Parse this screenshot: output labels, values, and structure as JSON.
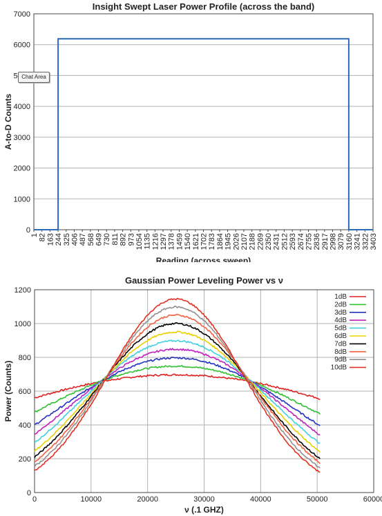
{
  "overlay": {
    "chat_area_label": "Chat Area"
  },
  "chart_data": [
    {
      "type": "line",
      "title": "Insight Swept Laser Power Profile (across the band)",
      "xlabel": "Reading (across sweep)",
      "ylabel": "A-to-D Counts",
      "ylim": [
        0,
        7000
      ],
      "yticks": [
        0,
        1000,
        2000,
        3000,
        4000,
        5000,
        6000,
        7000
      ],
      "xlim": [
        1,
        3403
      ],
      "categories": [
        "1",
        "82",
        "163",
        "244",
        "325",
        "406",
        "487",
        "568",
        "649",
        "730",
        "811",
        "892",
        "973",
        "1054",
        "1135",
        "1216",
        "1297",
        "1378",
        "1459",
        "1540",
        "1621",
        "1702",
        "1783",
        "1864",
        "1945",
        "2026",
        "2107",
        "2188",
        "2269",
        "2350",
        "2431",
        "2512",
        "2593",
        "2674",
        "2755",
        "2836",
        "2917",
        "2998",
        "3079",
        "3160",
        "3241",
        "3322",
        "3403"
      ],
      "grid": true,
      "series": [
        {
          "color": "#2a6ab8",
          "points": [
            [
              1,
              0
            ],
            [
              244,
              0
            ],
            [
              244,
              6190
            ],
            [
              3160,
              6190
            ],
            [
              3160,
              0
            ],
            [
              3403,
              0
            ]
          ]
        }
      ]
    },
    {
      "type": "line",
      "title": "Gaussian Power Leveling Power vs ν",
      "xlabel": "ν (.1 GHZ)",
      "ylabel": "Power (Counts)",
      "xlim": [
        0,
        60000
      ],
      "ylim": [
        0,
        1200
      ],
      "xticks": [
        0,
        10000,
        20000,
        30000,
        40000,
        50000,
        60000
      ],
      "yticks": [
        0,
        200,
        400,
        600,
        800,
        1000,
        1200
      ],
      "grid": true,
      "legend": "top-right",
      "series": [
        {
          "name": "1dB",
          "color": "#e02020",
          "x_range": [
            0,
            50500
          ],
          "center": 25000,
          "peak": 697,
          "left_end": 560,
          "right_end": 555
        },
        {
          "name": "2dB",
          "color": "#30c030",
          "x_range": [
            0,
            50500
          ],
          "center": 25000,
          "peak": 748,
          "left_end": 475,
          "right_end": 465
        },
        {
          "name": "3dB",
          "color": "#2030c0",
          "x_range": [
            0,
            50500
          ],
          "center": 25000,
          "peak": 797,
          "left_end": 400,
          "right_end": 395
        },
        {
          "name": "4dB",
          "color": "#c020c0",
          "x_range": [
            0,
            50500
          ],
          "center": 25000,
          "peak": 848,
          "left_end": 345,
          "right_end": 340
        },
        {
          "name": "5dB",
          "color": "#40d0e0",
          "x_range": [
            0,
            50500
          ],
          "center": 25000,
          "peak": 898,
          "left_end": 295,
          "right_end": 290
        },
        {
          "name": "6dB",
          "color": "#e8d000",
          "x_range": [
            0,
            50500
          ],
          "center": 25000,
          "peak": 950,
          "left_end": 245,
          "right_end": 240
        },
        {
          "name": "7dB",
          "color": "#000000",
          "x_range": [
            0,
            50500
          ],
          "center": 25000,
          "peak": 1000,
          "left_end": 210,
          "right_end": 200
        },
        {
          "name": "8dB",
          "color": "#f06040",
          "x_range": [
            0,
            50500
          ],
          "center": 25000,
          "peak": 1050,
          "left_end": 180,
          "right_end": 175
        },
        {
          "name": "9dB",
          "color": "#909090",
          "x_range": [
            0,
            50500
          ],
          "center": 25000,
          "peak": 1098,
          "left_end": 155,
          "right_end": 145
        },
        {
          "name": "10dB",
          "color": "#e03020",
          "x_range": [
            0,
            50500
          ],
          "center": 25000,
          "peak": 1145,
          "left_end": 130,
          "right_end": 120
        }
      ]
    }
  ]
}
